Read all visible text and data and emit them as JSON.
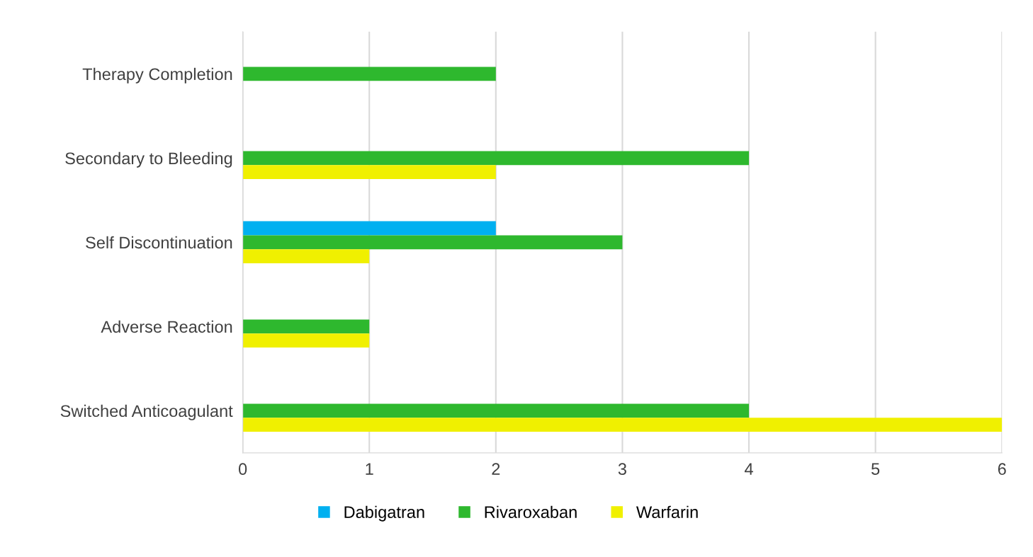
{
  "chart_data": {
    "type": "bar",
    "orientation": "horizontal",
    "categories": [
      "Therapy Completion",
      "Secondary to Bleeding",
      "Self Discontinuation",
      "Adverse Reaction",
      "Switched Anticoagulant"
    ],
    "series": [
      {
        "name": "Dabigatran",
        "color": "#00b0f0",
        "values": [
          0,
          0,
          2,
          0,
          0
        ]
      },
      {
        "name": "Rivaroxaban",
        "color": "#2eb82e",
        "values": [
          2,
          4,
          3,
          1,
          4
        ]
      },
      {
        "name": "Warfarin",
        "color": "#f0f000",
        "values": [
          0,
          2,
          1,
          1,
          6
        ]
      }
    ],
    "xlim": [
      0,
      6
    ],
    "xticks": [
      0,
      1,
      2,
      3,
      4,
      5,
      6
    ],
    "grid": "x",
    "legend": "bottom"
  }
}
